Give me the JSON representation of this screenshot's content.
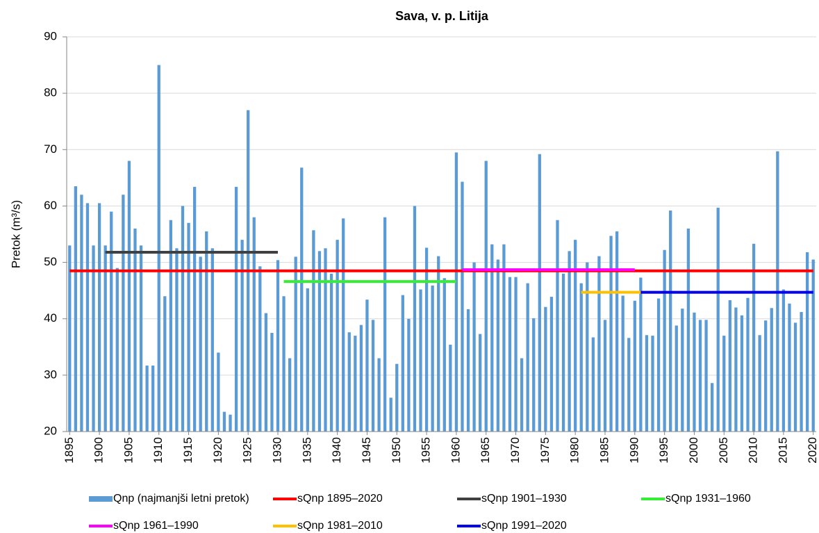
{
  "chart_data": {
    "type": "bar",
    "title": "Sava, v. p. Litija",
    "ylabel": "Pretok (m³/s)",
    "x": [
      1895,
      1896,
      1897,
      1898,
      1899,
      1900,
      1901,
      1902,
      1903,
      1904,
      1905,
      1906,
      1907,
      1908,
      1909,
      1910,
      1911,
      1912,
      1913,
      1914,
      1915,
      1916,
      1917,
      1918,
      1919,
      1920,
      1921,
      1922,
      1923,
      1924,
      1925,
      1926,
      1927,
      1928,
      1929,
      1930,
      1931,
      1932,
      1933,
      1934,
      1935,
      1936,
      1937,
      1938,
      1939,
      1940,
      1941,
      1942,
      1943,
      1944,
      1945,
      1946,
      1947,
      1948,
      1949,
      1950,
      1951,
      1952,
      1953,
      1954,
      1955,
      1956,
      1957,
      1958,
      1959,
      1960,
      1961,
      1962,
      1963,
      1964,
      1965,
      1966,
      1967,
      1968,
      1969,
      1970,
      1971,
      1972,
      1973,
      1974,
      1975,
      1976,
      1977,
      1978,
      1979,
      1980,
      1981,
      1982,
      1983,
      1984,
      1985,
      1986,
      1987,
      1988,
      1989,
      1990,
      1991,
      1992,
      1993,
      1994,
      1995,
      1996,
      1997,
      1998,
      1999,
      2000,
      2001,
      2002,
      2003,
      2004,
      2005,
      2006,
      2007,
      2008,
      2009,
      2010,
      2011,
      2012,
      2013,
      2014,
      2015,
      2016,
      2017,
      2018,
      2019,
      2020
    ],
    "xlim": [
      1894.5,
      2020.5
    ],
    "xticks": [
      1895,
      1900,
      1905,
      1910,
      1915,
      1920,
      1925,
      1930,
      1935,
      1940,
      1945,
      1950,
      1955,
      1960,
      1965,
      1970,
      1975,
      1980,
      1985,
      1990,
      1995,
      2000,
      2005,
      2010,
      2015,
      2020
    ],
    "ylim": [
      20,
      90
    ],
    "yticks": [
      20,
      30,
      40,
      50,
      60,
      70,
      80,
      90
    ],
    "grid": true,
    "series": [
      {
        "name": "Qnp (najmanjši letni pretok)",
        "type": "bar",
        "color": "#5b9bd5",
        "values": [
          53,
          63.5,
          62,
          60.5,
          53,
          60.5,
          53,
          59,
          49,
          62,
          68,
          56,
          53,
          31.7,
          31.7,
          85,
          44,
          57.5,
          52.5,
          60,
          57,
          63.4,
          51,
          55.5,
          52.5,
          34,
          23.5,
          23,
          63.4,
          54,
          77,
          58,
          49.3,
          41,
          37.5,
          50.4,
          44,
          33,
          51,
          66.8,
          45.4,
          55.7,
          52,
          52.5,
          48,
          54,
          57.8,
          37.6,
          37,
          38.9,
          43.4,
          39.8,
          33,
          58,
          26,
          32,
          44.2,
          40,
          60,
          45.2,
          52.6,
          45.9,
          51.1,
          47.2,
          35.4,
          69.5,
          64.3,
          41.7,
          50,
          37.3,
          68,
          53.2,
          50.5,
          53.2,
          47.4,
          47.4,
          33,
          46.3,
          40.1,
          69.2,
          42.1,
          43.9,
          57.5,
          48,
          52,
          54,
          46.3,
          50,
          36.7,
          51.1,
          39.8,
          54.7,
          55.5,
          44.1,
          36.6,
          43.2,
          47.3,
          37.1,
          37,
          43.6,
          52.2,
          59.2,
          38.8,
          41.8,
          56,
          41.1,
          39.8,
          39.8,
          28.6,
          59.7,
          37,
          43.3,
          42,
          40.6,
          43.7,
          53.3,
          37.1,
          39.7,
          41.9,
          69.7,
          45.2,
          42.7,
          39.3,
          41.2,
          51.8,
          50.5
        ]
      },
      {
        "name": "sQnp 1895–2020",
        "type": "line",
        "color": "#ff0000",
        "x": [
          1895,
          2020
        ],
        "values": [
          48.5,
          48.5
        ]
      },
      {
        "name": "sQnp 1901–1930",
        "type": "line",
        "color": "#404040",
        "x": [
          1901,
          1930
        ],
        "values": [
          51.8,
          51.8
        ]
      },
      {
        "name": "sQnp 1931–1960",
        "type": "line",
        "color": "#33ee33",
        "x": [
          1931,
          1960
        ],
        "values": [
          46.6,
          46.6
        ]
      },
      {
        "name": "sQnp 1961–1990",
        "type": "line",
        "color": "#ff00ff",
        "x": [
          1961,
          1990
        ],
        "values": [
          48.7,
          48.7
        ]
      },
      {
        "name": "sQnp 1981–2010",
        "type": "line",
        "color": "#ffc000",
        "x": [
          1981,
          2010
        ],
        "values": [
          44.7,
          44.7
        ]
      },
      {
        "name": "sQnp 1991–2020",
        "type": "line",
        "color": "#0000ee",
        "x": [
          1991,
          2020
        ],
        "values": [
          44.7,
          44.7
        ]
      }
    ]
  }
}
